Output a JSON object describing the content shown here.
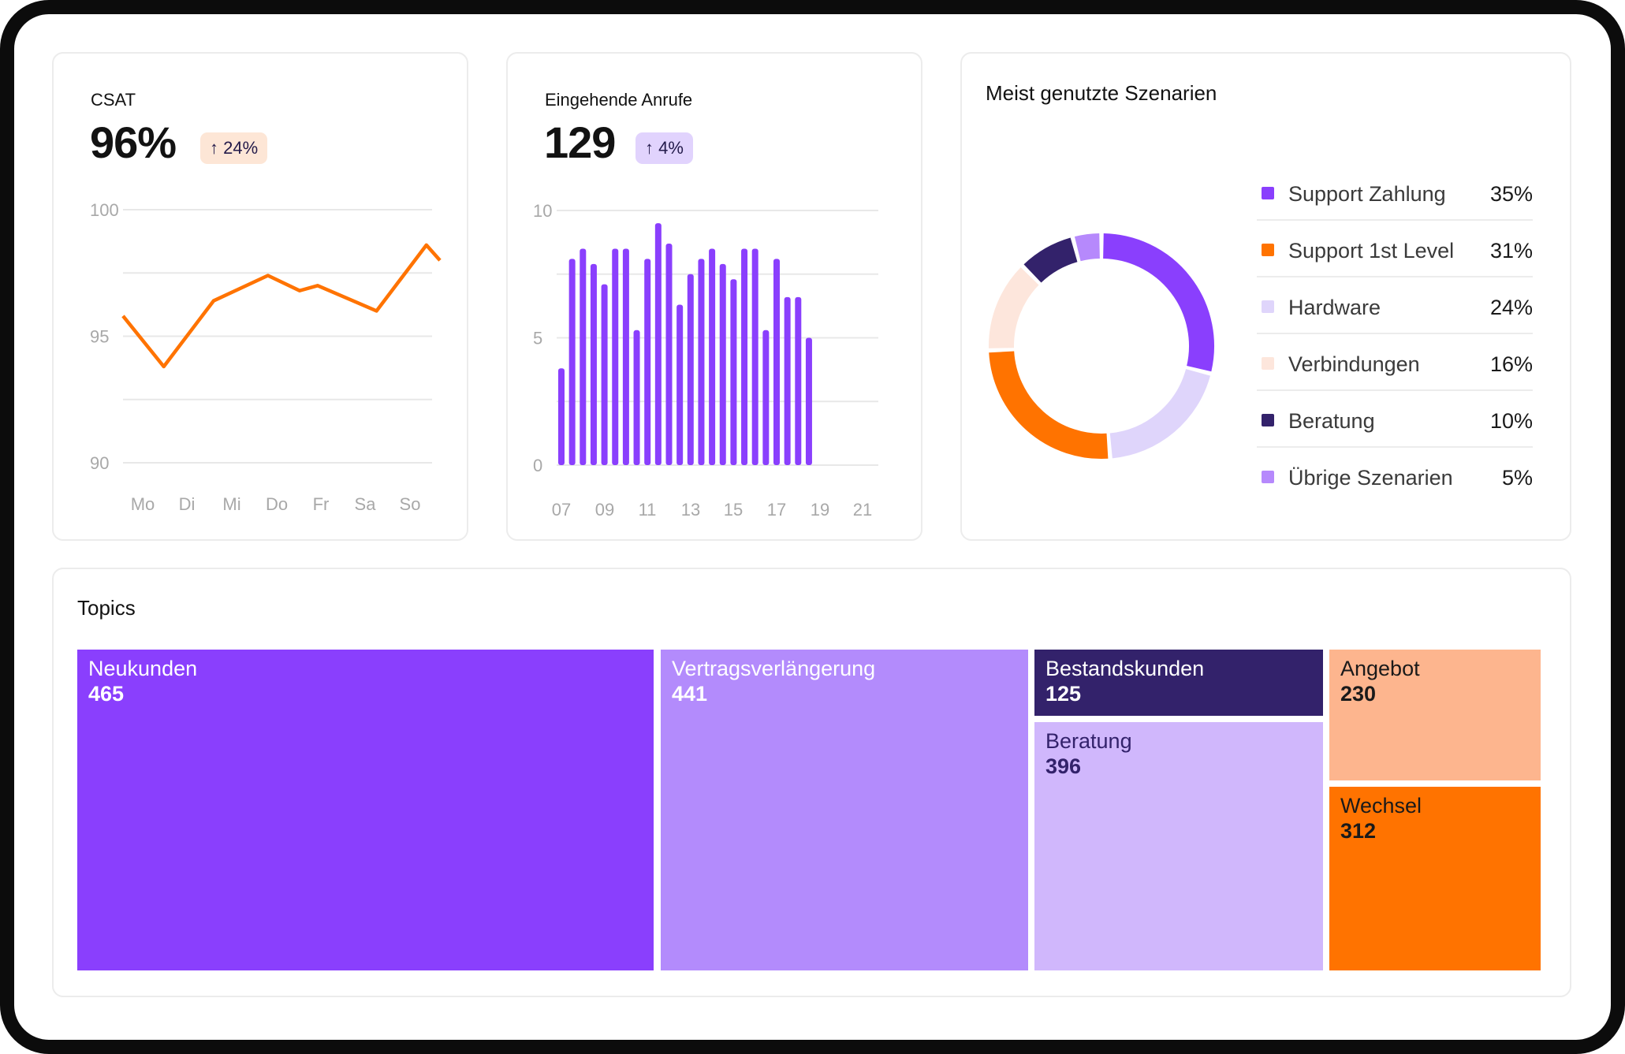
{
  "colors": {
    "purple": "#8a3ffd",
    "orange": "#ff7300",
    "lavender": "#dfd5fb",
    "peach": "#fde6dc",
    "navy": "#33226b",
    "light_purple": "#b689fc",
    "gridline": "#e8e8e8",
    "tick": "#a8a8a8"
  },
  "csat": {
    "title": "CSAT",
    "value": "96%",
    "badge": "↑ 24%",
    "chart_data": {
      "type": "line",
      "categories": [
        "Mo",
        "Di",
        "Mi",
        "Do",
        "Fr",
        "Sa",
        "So"
      ],
      "x": [
        0,
        0.9,
        2.0,
        3.2,
        3.9,
        4.3,
        5.6,
        6.7,
        7.0
      ],
      "values": [
        95.8,
        93.8,
        96.4,
        97.4,
        96.8,
        97.0,
        96.0,
        98.6,
        98.0
      ],
      "ylim": [
        90,
        100
      ],
      "yticks": [
        "100",
        "95",
        "90"
      ],
      "grid": true,
      "color": "#ff7300"
    }
  },
  "calls": {
    "title": "Eingehende Anrufe",
    "value": "129",
    "badge": "↑ 4%",
    "chart_data": {
      "type": "bar",
      "values": [
        3.8,
        8.1,
        8.5,
        7.9,
        7.1,
        8.5,
        8.5,
        5.3,
        8.1,
        9.5,
        8.7,
        6.3,
        7.5,
        8.1,
        8.5,
        7.9,
        7.3,
        8.5,
        8.5,
        5.3,
        8.1,
        6.6,
        6.6,
        5.0
      ],
      "xticks": [
        "07",
        "09",
        "11",
        "13",
        "15",
        "17",
        "19",
        "21"
      ],
      "yticks": [
        "10",
        "5",
        "0"
      ],
      "ylim": [
        0,
        10
      ],
      "grid": true,
      "color": "#8a3ffd"
    }
  },
  "scenarios": {
    "title": "Meist genutzte Szenarien",
    "chart_data": {
      "type": "pie",
      "labels": [
        "Support Zahlung",
        "Support 1st Level",
        "Hardware",
        "Verbindungen",
        "Beratung",
        "Übrige Szenarien"
      ],
      "values": [
        35,
        31,
        24,
        16,
        10,
        5
      ],
      "display": [
        "35%",
        "31%",
        "24%",
        "16%",
        "10%",
        "5%"
      ],
      "colors": [
        "#8a3ffd",
        "#ff7300",
        "#dfd5fb",
        "#fde6dc",
        "#33226b",
        "#b689fc"
      ],
      "arc_order": [
        0,
        2,
        1,
        3,
        4,
        5
      ],
      "donut": true
    }
  },
  "topics": {
    "title": "Topics",
    "chart_data": {
      "type": "treemap",
      "items": [
        {
          "label": "Neukunden",
          "value": "465",
          "color": "#8a3ffd",
          "text_color": "#ffffff"
        },
        {
          "label": "Vertragsverlängerung",
          "value": "441",
          "color": "#b38bfc",
          "text_color": "#ffffff"
        },
        {
          "label": "Bestandskunden",
          "value": "125",
          "color": "#33226b",
          "text_color": "#ffffff"
        },
        {
          "label": "Beratung",
          "value": "396",
          "color": "#d0b7fc",
          "text_color": "#33226b"
        },
        {
          "label": "Angebot",
          "value": "230",
          "color": "#fdb58e",
          "text_color": "#1a1a1a"
        },
        {
          "label": "Wechsel",
          "value": "312",
          "color": "#ff7300",
          "text_color": "#1a1a1a"
        }
      ]
    }
  }
}
